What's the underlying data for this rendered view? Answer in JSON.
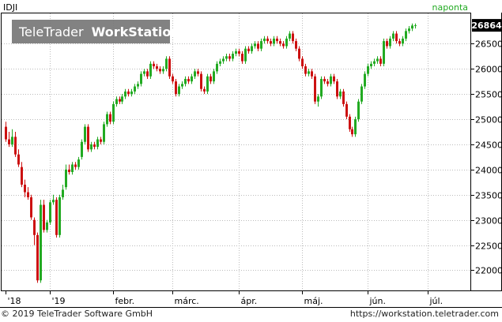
{
  "footer": {
    "copyright": "© 2019 TeleTrader Software GmbH",
    "url": "https://workstation.teletrader.com"
  },
  "chart_data": {
    "type": "candlestick",
    "symbol": "IDJI",
    "period_label": "naponta",
    "watermark": {
      "brand": "TeleTrader",
      "product": "WorkStation"
    },
    "last_value": "26864",
    "colors": {
      "up": "#22aa22",
      "down": "#cc1111",
      "last_value_box": "#000000",
      "period_label": "#22aa22",
      "grid": "#bbbbbb"
    },
    "ylim": [
      21600,
      27100
    ],
    "yticks": [
      22000,
      22500,
      23000,
      23500,
      24000,
      24500,
      25000,
      25500,
      26000,
      26500
    ],
    "ytick_labels": [
      "22000",
      "22500",
      "23000",
      "23500",
      "24000",
      "24500",
      "25000",
      "25500",
      "26000",
      "26500"
    ],
    "xlim": [
      0,
      146
    ],
    "xticks": [
      {
        "i": 0,
        "label": "'18"
      },
      {
        "i": 14,
        "label": "'19"
      },
      {
        "i": 34,
        "label": "febr."
      },
      {
        "i": 53,
        "label": "márc."
      },
      {
        "i": 74,
        "label": "ápr."
      },
      {
        "i": 94,
        "label": "máj."
      },
      {
        "i": 115,
        "label": "jún."
      },
      {
        "i": 134,
        "label": "júl."
      }
    ],
    "grid": true,
    "legend": "none",
    "close": [
      24600,
      24500,
      24650,
      24300,
      24100,
      23700,
      23550,
      23450,
      23050,
      22700,
      21800,
      23300,
      22800,
      22950,
      23350,
      23400,
      22700,
      23450,
      23600,
      24000,
      23950,
      24100,
      24050,
      24200,
      24550,
      24850,
      24400,
      24500,
      24450,
      24600,
      24550,
      24900,
      25100,
      24950,
      25300,
      25400,
      25350,
      25450,
      25550,
      25500,
      25550,
      25650,
      25700,
      25900,
      25950,
      25850,
      26100,
      26050,
      26000,
      25950,
      26000,
      26200,
      25850,
      25750,
      25500,
      25650,
      25700,
      25800,
      25750,
      25850,
      25950,
      25900,
      25600,
      25550,
      25850,
      25750,
      25950,
      26100,
      26150,
      26200,
      26250,
      26200,
      26300,
      26350,
      26300,
      26150,
      26400,
      26350,
      26450,
      26500,
      26400,
      26550,
      26600,
      26550,
      26500,
      26600,
      26550,
      26500,
      26450,
      26600,
      26700,
      26550,
      26400,
      26200,
      26050,
      25900,
      25950,
      25850,
      25350,
      25450,
      25800,
      25750,
      25700,
      25850,
      25750,
      25450,
      25550,
      25300,
      25050,
      24800,
      24700,
      25000,
      25350,
      25650,
      25900,
      26050,
      26100,
      26150,
      26200,
      26100,
      26550,
      26450,
      26600,
      26700,
      26550,
      26500,
      26600,
      26750,
      26800,
      26860,
      26864
    ],
    "open": [
      24850,
      24600,
      24500,
      24650,
      24300,
      24050,
      23700,
      23550,
      23450,
      23000,
      22700,
      21800,
      23300,
      22800,
      22950,
      23350,
      23400,
      22700,
      23450,
      23650,
      24000,
      23950,
      24100,
      24050,
      24250,
      24550,
      24850,
      24400,
      24500,
      24450,
      24600,
      24550,
      24900,
      25100,
      24950,
      25300,
      25400,
      25350,
      25450,
      25550,
      25500,
      25550,
      25650,
      25700,
      25900,
      25950,
      25850,
      26100,
      26050,
      26000,
      25950,
      26000,
      26200,
      25850,
      25750,
      25500,
      25650,
      25700,
      25800,
      25750,
      25850,
      25950,
      25900,
      25600,
      25550,
      25850,
      25750,
      25950,
      26100,
      26150,
      26200,
      26250,
      26200,
      26300,
      26350,
      26300,
      26150,
      26400,
      26350,
      26450,
      26500,
      26400,
      26550,
      26600,
      26550,
      26500,
      26600,
      26550,
      26500,
      26450,
      26600,
      26700,
      26550,
      26400,
      26200,
      26050,
      25900,
      25950,
      25850,
      25350,
      25450,
      25800,
      25750,
      25700,
      25850,
      25750,
      25450,
      25550,
      25300,
      25050,
      24800,
      24700,
      25000,
      25350,
      25650,
      25900,
      26050,
      26100,
      26150,
      26200,
      26100,
      26550,
      26450,
      26600,
      26700,
      26550,
      26500,
      26600,
      26750,
      26800,
      26860
    ],
    "high": [
      24950,
      24750,
      24800,
      24750,
      24400,
      24150,
      23800,
      23650,
      23500,
      23050,
      22750,
      23400,
      23400,
      23000,
      23400,
      23500,
      23450,
      23500,
      23700,
      24100,
      24100,
      24150,
      24150,
      24250,
      24600,
      24900,
      24900,
      24550,
      24550,
      24650,
      24650,
      24950,
      25150,
      25150,
      25350,
      25450,
      25450,
      25500,
      25600,
      25600,
      25600,
      25700,
      25750,
      25950,
      26000,
      26000,
      26150,
      26150,
      26100,
      26050,
      26050,
      26250,
      26250,
      25900,
      25800,
      25700,
      25750,
      25850,
      25850,
      25900,
      26000,
      26000,
      25950,
      25650,
      25900,
      25900,
      26000,
      26150,
      26200,
      26250,
      26300,
      26300,
      26350,
      26400,
      26400,
      26350,
      26450,
      26450,
      26500,
      26550,
      26550,
      26600,
      26650,
      26650,
      26600,
      26650,
      26650,
      26600,
      26550,
      26650,
      26750,
      26750,
      26600,
      26450,
      26250,
      26100,
      26000,
      26000,
      25900,
      25500,
      25850,
      25850,
      25800,
      25900,
      25900,
      25800,
      25600,
      25600,
      25350,
      25100,
      24850,
      25050,
      25400,
      25700,
      25950,
      26100,
      26150,
      26200,
      26250,
      26250,
      26600,
      26600,
      26650,
      26750,
      26750,
      26600,
      26650,
      26800,
      26850,
      26900,
      26900
    ],
    "low": [
      24550,
      24450,
      24450,
      24250,
      24050,
      23650,
      23450,
      23400,
      23000,
      22500,
      21750,
      21750,
      22750,
      22750,
      22900,
      23300,
      22650,
      22650,
      23400,
      23600,
      23900,
      23900,
      24000,
      24000,
      24200,
      24500,
      24350,
      24350,
      24400,
      24400,
      24500,
      24500,
      24850,
      24900,
      24900,
      25250,
      25300,
      25300,
      25400,
      25450,
      25450,
      25500,
      25600,
      25650,
      25850,
      25800,
      25800,
      26000,
      25950,
      25900,
      25900,
      25950,
      25800,
      25700,
      25450,
      25450,
      25600,
      25650,
      25700,
      25700,
      25800,
      25850,
      25550,
      25500,
      25500,
      25700,
      25700,
      25900,
      26050,
      26100,
      26150,
      26150,
      26150,
      26250,
      26250,
      26100,
      26100,
      26300,
      26300,
      26400,
      26350,
      26350,
      26500,
      26500,
      26450,
      26450,
      26500,
      26450,
      26400,
      26400,
      26550,
      26500,
      26350,
      26150,
      26000,
      25850,
      25850,
      25800,
      25300,
      25250,
      25400,
      25700,
      25650,
      25650,
      25700,
      25400,
      25400,
      25250,
      25000,
      24750,
      24650,
      24650,
      24950,
      25300,
      25600,
      25850,
      26000,
      26050,
      26100,
      26050,
      26050,
      26400,
      26400,
      26550,
      26500,
      26450,
      26450,
      26550,
      26700,
      26750,
      26800
    ]
  }
}
